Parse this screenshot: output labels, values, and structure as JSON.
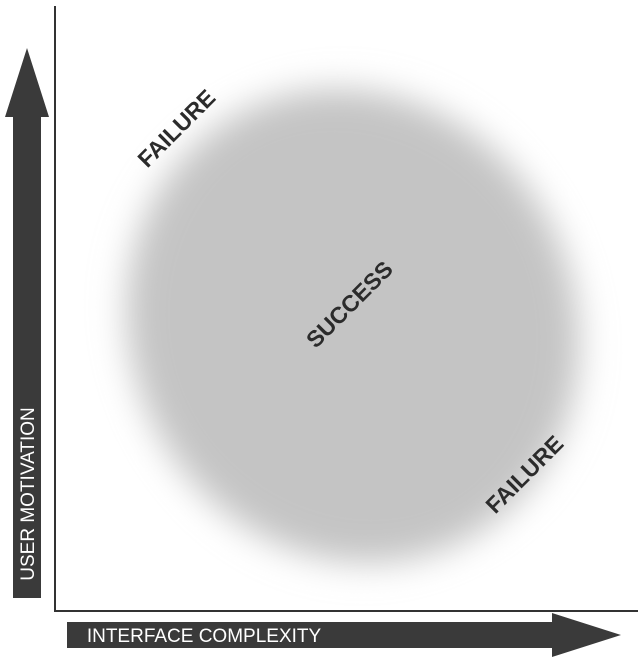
{
  "axes": {
    "y_label": "USER MOTIVATION",
    "x_label": "INTERFACE COMPLEXITY"
  },
  "regions": {
    "top_left": "FAILURE",
    "center": "SUCCESS",
    "bottom_right": "FAILURE"
  },
  "colors": {
    "background": "#ffffff",
    "arrow": "#3a3a3a",
    "axis_line": "#333333",
    "success_blob": "#c4c4c4",
    "region_text": "#2b2b2b",
    "axis_text": "#ffffff"
  }
}
